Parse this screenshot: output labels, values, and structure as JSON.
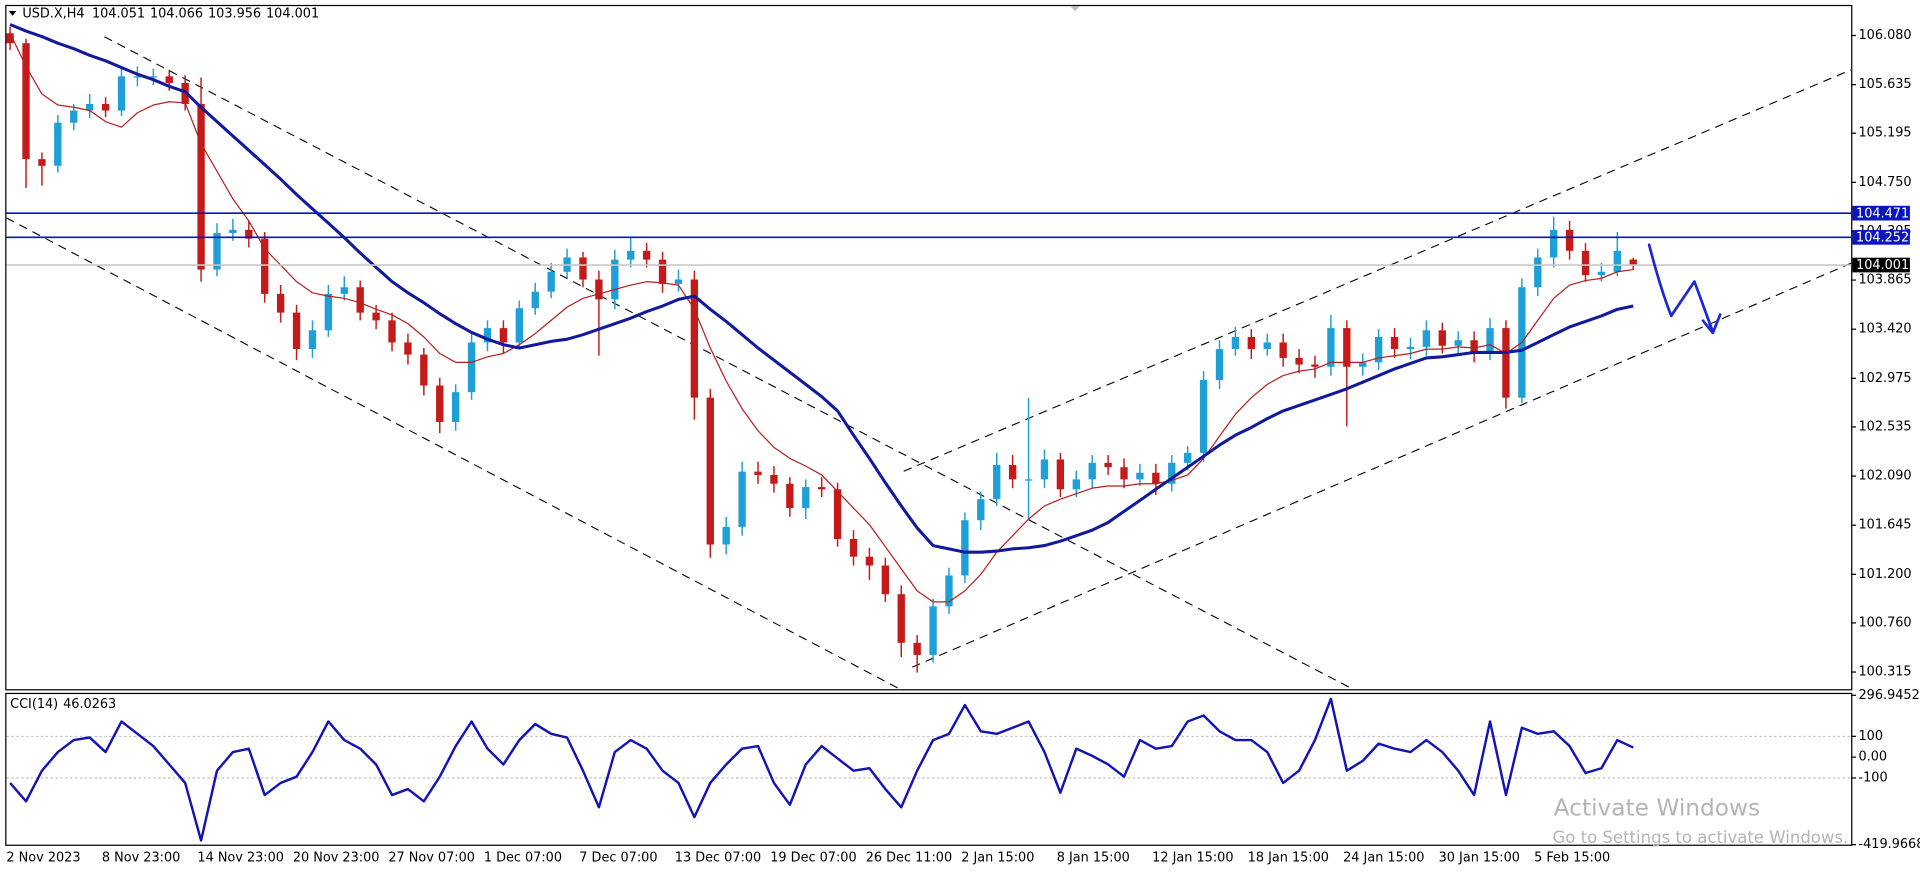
{
  "chart_data": [
    {
      "type": "candlestick",
      "title": "USD.X,H4",
      "categories": [
        "2 Nov 2023",
        null,
        null,
        null,
        null,
        null,
        "8 Nov 23:00",
        null,
        null,
        null,
        null,
        null,
        "14 Nov 23:00",
        null,
        null,
        null,
        null,
        null,
        "20 Nov 23:00",
        null,
        null,
        null,
        null,
        null,
        "27 Nov 07:00",
        null,
        null,
        null,
        null,
        null,
        "1 Dec 07:00",
        null,
        null,
        null,
        null,
        null,
        "7 Dec 07:00",
        null,
        null,
        null,
        null,
        null,
        "13 Dec 07:00",
        null,
        null,
        null,
        null,
        null,
        "19 Dec 07:00",
        null,
        null,
        null,
        null,
        null,
        "26 Dec 11:00",
        null,
        null,
        null,
        null,
        null,
        "2 Jan 15:00",
        null,
        null,
        null,
        null,
        null,
        "8 Jan 15:00",
        null,
        null,
        null,
        null,
        null,
        "12 Jan 15:00",
        null,
        null,
        null,
        null,
        null,
        "18 Jan 15:00",
        null,
        null,
        null,
        null,
        null,
        "24 Jan 15:00",
        null,
        null,
        null,
        null,
        null,
        "30 Jan 15:00",
        null,
        null,
        null,
        null,
        null,
        "5 Feb 15:00",
        null,
        null,
        null,
        null,
        null,
        null
      ],
      "open": [
        106.1,
        106.01,
        104.96,
        104.9,
        105.29,
        105.4,
        105.46,
        105.4,
        105.71,
        105.71,
        105.71,
        105.65,
        105.46,
        103.96,
        104.29,
        104.32,
        104.24,
        103.74,
        103.57,
        103.24,
        103.41,
        103.74,
        103.8,
        103.57,
        103.5,
        103.3,
        103.19,
        102.91,
        102.58,
        102.85,
        103.3,
        103.43,
        103.3,
        103.61,
        103.76,
        103.94,
        104.07,
        103.87,
        103.69,
        104.05,
        104.13,
        104.05,
        103.83,
        103.87,
        102.8,
        101.47,
        101.63,
        102.13,
        102.1,
        102.02,
        101.8,
        101.99,
        101.97,
        101.52,
        101.36,
        101.28,
        101.02,
        100.58,
        100.47,
        100.91,
        101.19,
        101.69,
        101.88,
        102.19,
        102.06,
        102.06,
        102.24,
        101.97,
        102.06,
        102.21,
        102.17,
        102.06,
        102.12,
        102.02,
        102.21,
        102.3,
        102.96,
        103.24,
        103.35,
        103.24,
        103.3,
        103.16,
        103.1,
        103.08,
        103.43,
        103.08,
        103.12,
        103.35,
        103.24,
        103.26,
        103.41,
        103.27,
        103.32,
        103.21,
        103.43,
        102.8,
        103.8,
        104.07,
        104.32,
        104.13,
        103.91,
        103.94,
        104.051
      ],
      "high": [
        106.16,
        106.05,
        105.02,
        105.36,
        105.46,
        105.55,
        105.52,
        105.78,
        105.8,
        105.78,
        105.77,
        105.72,
        105.7,
        104.38,
        104.42,
        104.4,
        104.3,
        103.82,
        103.64,
        103.5,
        103.82,
        103.9,
        103.86,
        103.64,
        103.57,
        103.38,
        103.25,
        102.98,
        102.92,
        103.38,
        103.5,
        103.5,
        103.68,
        103.84,
        104.02,
        104.15,
        104.12,
        103.95,
        104.14,
        104.25,
        104.2,
        104.12,
        103.96,
        103.95,
        102.88,
        101.72,
        102.22,
        102.22,
        102.18,
        102.08,
        102.06,
        102.08,
        102.03,
        101.6,
        101.44,
        101.35,
        101.1,
        100.65,
        100.98,
        101.26,
        101.76,
        101.95,
        102.3,
        102.28,
        102.8,
        102.33,
        102.3,
        102.14,
        102.28,
        102.28,
        102.25,
        102.2,
        102.2,
        102.28,
        102.36,
        103.04,
        103.32,
        103.44,
        103.42,
        103.38,
        103.38,
        103.24,
        103.18,
        103.55,
        103.5,
        103.2,
        103.42,
        103.43,
        103.34,
        103.5,
        103.48,
        103.4,
        103.4,
        103.52,
        103.5,
        103.88,
        104.15,
        104.44,
        104.4,
        104.2,
        104.02,
        104.3,
        104.066
      ],
      "low": [
        105.95,
        104.7,
        104.72,
        104.84,
        105.22,
        105.33,
        105.34,
        105.35,
        105.62,
        105.63,
        105.58,
        105.4,
        103.85,
        103.9,
        104.22,
        104.16,
        103.66,
        103.48,
        103.14,
        103.16,
        103.35,
        103.68,
        103.5,
        103.42,
        103.22,
        103.1,
        102.82,
        102.48,
        102.5,
        102.78,
        103.22,
        103.2,
        103.24,
        103.55,
        103.7,
        103.88,
        103.8,
        103.18,
        103.6,
        103.98,
        103.98,
        103.75,
        103.76,
        102.6,
        101.35,
        101.38,
        101.55,
        102.02,
        101.94,
        101.72,
        101.7,
        101.9,
        101.45,
        101.28,
        101.15,
        100.95,
        100.45,
        100.31,
        100.4,
        100.84,
        101.12,
        101.6,
        101.82,
        101.98,
        101.7,
        101.98,
        101.9,
        101.9,
        101.98,
        102.1,
        101.98,
        102.0,
        101.92,
        101.95,
        102.14,
        102.22,
        102.88,
        103.18,
        103.15,
        103.18,
        103.08,
        103.02,
        102.98,
        103.0,
        102.54,
        103.0,
        103.05,
        103.16,
        103.15,
        103.18,
        103.2,
        103.2,
        103.12,
        103.14,
        102.7,
        102.75,
        103.72,
        103.98,
        104.05,
        103.85,
        103.85,
        103.9,
        103.956
      ],
      "close": [
        106.01,
        104.96,
        104.9,
        105.29,
        105.4,
        105.46,
        105.4,
        105.71,
        105.71,
        105.71,
        105.65,
        105.46,
        103.96,
        104.29,
        104.32,
        104.24,
        103.74,
        103.57,
        103.24,
        103.41,
        103.74,
        103.8,
        103.57,
        103.5,
        103.3,
        103.19,
        102.91,
        102.58,
        102.85,
        103.3,
        103.43,
        103.3,
        103.61,
        103.76,
        103.94,
        104.07,
        103.87,
        103.69,
        104.05,
        104.13,
        104.05,
        103.83,
        103.87,
        102.8,
        101.47,
        101.63,
        102.13,
        102.1,
        102.02,
        101.8,
        101.99,
        101.97,
        101.52,
        101.36,
        101.28,
        101.02,
        100.58,
        100.47,
        100.91,
        101.19,
        101.69,
        101.88,
        102.19,
        102.06,
        102.06,
        102.24,
        101.97,
        102.06,
        102.21,
        102.17,
        102.06,
        102.12,
        102.02,
        102.21,
        102.3,
        102.96,
        103.24,
        103.35,
        103.24,
        103.3,
        103.16,
        103.1,
        103.08,
        103.43,
        103.08,
        103.12,
        103.35,
        103.24,
        103.26,
        103.41,
        103.27,
        103.32,
        103.21,
        103.43,
        102.8,
        103.8,
        104.07,
        104.32,
        104.13,
        103.91,
        103.94,
        104.13,
        104.001
      ],
      "up_color": "#1e9fd6",
      "down_color": "#c41a1a",
      "series": [
        {
          "color": "#b52020",
          "width": 1,
          "values": [
            106.1,
            105.8,
            105.55,
            105.45,
            105.43,
            105.4,
            105.3,
            105.25,
            105.38,
            105.45,
            105.48,
            105.47,
            105.1,
            104.85,
            104.6,
            104.4,
            104.15,
            104.0,
            103.85,
            103.75,
            103.72,
            103.7,
            103.66,
            103.6,
            103.55,
            103.47,
            103.35,
            103.2,
            103.12,
            103.12,
            103.17,
            103.2,
            103.28,
            103.38,
            103.5,
            103.62,
            103.7,
            103.74,
            103.78,
            103.82,
            103.85,
            103.84,
            103.82,
            103.6,
            103.25,
            102.95,
            102.7,
            102.5,
            102.35,
            102.25,
            102.18,
            102.1,
            101.95,
            101.8,
            101.65,
            101.45,
            101.25,
            101.05,
            100.95,
            100.95,
            101.05,
            101.2,
            101.4,
            101.55,
            101.7,
            101.82,
            101.88,
            101.93,
            101.98,
            102.0,
            102.0,
            102.02,
            102.02,
            102.05,
            102.1,
            102.25,
            102.45,
            102.65,
            102.8,
            102.92,
            103.0,
            103.04,
            103.06,
            103.12,
            103.12,
            103.12,
            103.16,
            103.18,
            103.2,
            103.24,
            103.24,
            103.26,
            103.25,
            103.28,
            103.2,
            103.3,
            103.5,
            103.7,
            103.82,
            103.86,
            103.88,
            103.94,
            103.96
          ]
        },
        {
          "color": "#111a9c",
          "width": 2.5,
          "values": [
            106.18,
            106.12,
            106.07,
            106.01,
            105.96,
            105.9,
            105.85,
            105.79,
            105.73,
            105.68,
            105.62,
            105.57,
            105.43,
            105.3,
            105.17,
            105.04,
            104.91,
            104.78,
            104.64,
            104.51,
            104.38,
            104.25,
            104.11,
            103.98,
            103.85,
            103.75,
            103.66,
            103.56,
            103.47,
            103.39,
            103.33,
            103.28,
            103.25,
            103.28,
            103.31,
            103.33,
            103.37,
            103.42,
            103.47,
            103.52,
            103.58,
            103.63,
            103.69,
            103.72,
            103.6,
            103.49,
            103.37,
            103.25,
            103.14,
            103.03,
            102.92,
            102.81,
            102.68,
            102.46,
            102.25,
            102.03,
            101.82,
            101.62,
            101.46,
            101.43,
            101.4,
            101.4,
            101.41,
            101.43,
            101.44,
            101.46,
            101.5,
            101.55,
            101.6,
            101.67,
            101.77,
            101.87,
            101.97,
            102.07,
            102.17,
            102.27,
            102.37,
            102.46,
            102.53,
            102.61,
            102.68,
            102.73,
            102.78,
            102.83,
            102.88,
            102.94,
            103.0,
            103.06,
            103.11,
            103.16,
            103.17,
            103.19,
            103.21,
            103.21,
            103.21,
            103.23,
            103.3,
            103.37,
            103.44,
            103.49,
            103.54,
            103.6,
            103.63
          ]
        }
      ],
      "hlines": [
        {
          "value": 104.471,
          "color": "#0a14c0",
          "box_color": "#0a14c0"
        },
        {
          "value": 104.252,
          "color": "#0a14c0",
          "box_color": "#0a14c0"
        },
        {
          "value": 104.001,
          "color": "#c8c8c8",
          "box_color": "#000000"
        }
      ],
      "ylim": [
        100.16,
        106.346
      ],
      "yticks": [
        {
          "value": 106.08,
          "label": "106.080"
        },
        105.635,
        105.195,
        {
          "value": 104.75,
          "label": "104.750"
        },
        104.305,
        103.865,
        {
          "value": 103.42,
          "label": "103.420"
        },
        102.975,
        102.535,
        {
          "value": 102.09,
          "label": "102.090"
        },
        101.645,
        {
          "value": 101.2,
          "label": "101.200"
        },
        {
          "value": 100.76,
          "label": "100.760"
        },
        100.315
      ]
    },
    {
      "type": "line",
      "title": "CCI(14)",
      "series": [
        {
          "color": "#1414b4",
          "width": 2,
          "values": [
            -124,
            -212,
            -65,
            24,
            82,
            94,
            24,
            171,
            112,
            53,
            -35,
            -124,
            -400,
            -65,
            24,
            41,
            -182,
            -124,
            -94,
            24,
            171,
            82,
            41,
            -35,
            -182,
            -153,
            -212,
            -94,
            53,
            171,
            41,
            -35,
            82,
            159,
            112,
            94,
            -65,
            -241,
            24,
            82,
            41,
            -65,
            -124,
            -288,
            -124,
            -35,
            41,
            53,
            -124,
            -229,
            -35,
            53,
            -6,
            -65,
            -53,
            -153,
            -241,
            -65,
            82,
            112,
            250,
            124,
            112,
            141,
            171,
            24,
            -171,
            41,
            6,
            -35,
            -94,
            82,
            41,
            53,
            171,
            200,
            124,
            82,
            82,
            24,
            -124,
            -65,
            82,
            280,
            -65,
            -18,
            65,
            41,
            24,
            82,
            24,
            -65,
            -182,
            171,
            -182,
            141,
            112,
            124,
            53,
            -76,
            -53,
            82,
            46.0263
          ]
        }
      ],
      "levels": [
        100,
        -100
      ],
      "ylim": [
        -419.9668,
        296.9452
      ],
      "yticks": [
        296.9452,
        100,
        {
          "value": 0,
          "label": "0.00"
        },
        -100,
        -419.9668
      ]
    }
  ],
  "watermark": {
    "title": "Activate Windows",
    "subtitle": "Go to Settings to activate Windows."
  }
}
